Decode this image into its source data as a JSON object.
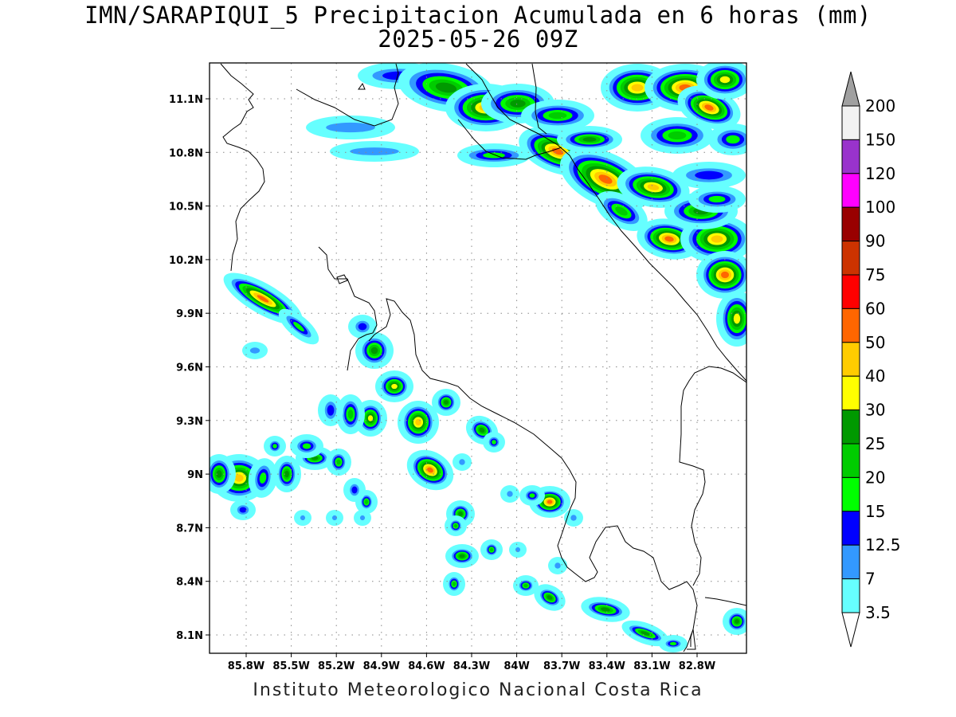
{
  "title": {
    "line1": "IMN/SARAPIQUI_5 Precipitacion Acumulada en 6 horas (mm)",
    "line2": "2025-05-26 09Z"
  },
  "credit": "Instituto Meteorologico Nacional Costa Rica",
  "map": {
    "lon_labels": [
      "85.8W",
      "85.5W",
      "85.2W",
      "84.9W",
      "84.6W",
      "84.3W",
      "84W",
      "83.7W",
      "83.4W",
      "83.1W",
      "82.8W"
    ],
    "lat_labels": [
      "11.1N",
      "10.8N",
      "10.5N",
      "10.2N",
      "9.9N",
      "9.6N",
      "9.3N",
      "9N",
      "8.7N",
      "8.4N",
      "8.1N"
    ],
    "grid": "dotted"
  },
  "colorbar": {
    "levels": [
      "3.5",
      "7",
      "12.5",
      "15",
      "20",
      "25",
      "30",
      "40",
      "50",
      "60",
      "75",
      "90",
      "100",
      "120",
      "150",
      "200"
    ],
    "colors": [
      "#ffffff",
      "#66ffff",
      "#3399ff",
      "#0000ff",
      "#00ff00",
      "#00cc00",
      "#009900",
      "#ffff00",
      "#ffcc00",
      "#ff6600",
      "#ff0000",
      "#cc3300",
      "#990000",
      "#ff00ff",
      "#9933cc",
      "#f2f2f2",
      "#a0a0a0"
    ]
  }
}
